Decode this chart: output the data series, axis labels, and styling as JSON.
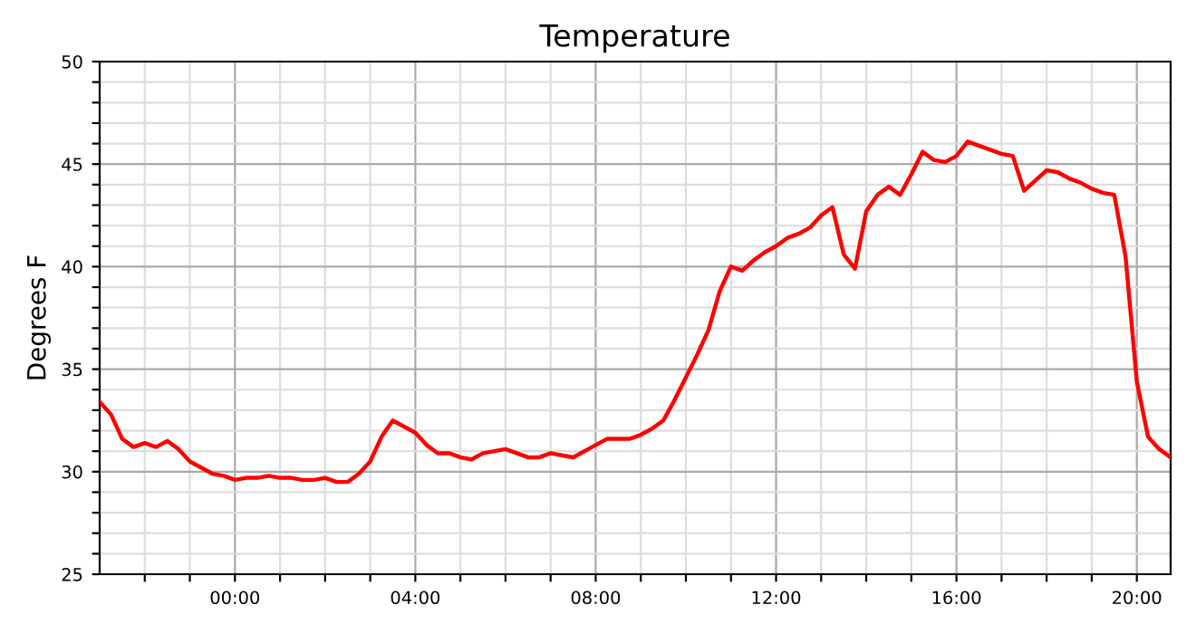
{
  "chart_data": {
    "type": "line",
    "title": "Temperature",
    "ylabel": "Degrees F",
    "x": [
      -3,
      -2.75,
      -2.5,
      -2.25,
      -2,
      -1.75,
      -1.5,
      -1.25,
      -1,
      -0.75,
      -0.5,
      -0.25,
      0,
      0.25,
      0.5,
      0.75,
      1,
      1.25,
      1.5,
      1.75,
      2,
      2.25,
      2.5,
      2.75,
      3,
      3.25,
      3.5,
      4,
      4.25,
      4.5,
      4.75,
      5,
      5.25,
      5.5,
      6,
      6.5,
      6.75,
      7,
      7.5,
      8,
      8.25,
      8.75,
      9,
      9.25,
      9.5,
      9.75,
      10,
      10.25,
      10.5,
      10.75,
      11,
      11.25,
      11.5,
      11.75,
      12,
      12.25,
      12.5,
      12.75,
      13,
      13.25,
      13.5,
      13.75,
      14,
      14.25,
      14.5,
      14.75,
      15,
      15.25,
      15.5,
      15.75,
      16,
      16.25,
      16.5,
      16.75,
      17,
      17.25,
      17.5,
      17.75,
      18,
      18.25,
      18.5,
      18.75,
      19,
      19.25,
      19.5,
      19.75,
      20,
      20.25,
      20.5,
      20.75
    ],
    "series": [
      {
        "color": "#ff0000",
        "values": [
          33.4,
          32.8,
          31.6,
          31.2,
          31.4,
          31.2,
          31.5,
          31.1,
          30.5,
          30.2,
          29.9,
          29.8,
          29.6,
          29.7,
          29.7,
          29.8,
          29.7,
          29.7,
          29.6,
          29.6,
          29.7,
          29.5,
          29.5,
          29.9,
          30.5,
          31.7,
          32.5,
          31.9,
          31.3,
          30.9,
          30.9,
          30.7,
          30.6,
          30.9,
          31.1,
          30.7,
          30.7,
          30.9,
          30.7,
          31.3,
          31.6,
          31.6,
          31.8,
          32.1,
          32.5,
          33.5,
          34.6,
          35.7,
          36.9,
          38.8,
          40.0,
          39.8,
          40.3,
          40.7,
          41.0,
          41.4,
          41.6,
          41.9,
          42.5,
          42.9,
          40.6,
          39.9,
          42.7,
          43.5,
          43.9,
          43.5,
          44.5,
          45.6,
          45.2,
          45.1,
          45.4,
          46.1,
          45.9,
          45.7,
          45.5,
          45.4,
          43.7,
          44.2,
          44.7,
          44.6,
          44.3,
          44.1,
          43.8,
          43.6,
          43.5,
          40.5,
          34.4,
          31.7,
          31.1,
          30.7
        ]
      }
    ],
    "xlim": [
      -3,
      20.75
    ],
    "xticks": [
      {
        "value": -2,
        "label": null
      },
      {
        "value": -1,
        "label": null
      },
      {
        "value": 0,
        "label": "00:00"
      },
      {
        "value": 1,
        "label": null
      },
      {
        "value": 2,
        "label": null
      },
      {
        "value": 3,
        "label": null
      },
      {
        "value": 4,
        "label": "04:00"
      },
      {
        "value": 5,
        "label": null
      },
      {
        "value": 6,
        "label": null
      },
      {
        "value": 7,
        "label": null
      },
      {
        "value": 8,
        "label": "08:00"
      },
      {
        "value": 9,
        "label": null
      },
      {
        "value": 10,
        "label": null
      },
      {
        "value": 11,
        "label": null
      },
      {
        "value": 12,
        "label": "12:00"
      },
      {
        "value": 13,
        "label": null
      },
      {
        "value": 14,
        "label": null
      },
      {
        "value": 15,
        "label": null
      },
      {
        "value": 16,
        "label": "16:00"
      },
      {
        "value": 17,
        "label": null
      },
      {
        "value": 18,
        "label": null
      },
      {
        "value": 19,
        "label": null
      },
      {
        "value": 20,
        "label": "20:00"
      }
    ],
    "ylim": [
      25,
      50
    ],
    "yticks": [
      25,
      {
        "value": 26,
        "label": null
      },
      {
        "value": 27,
        "label": null
      },
      {
        "value": 28,
        "label": null
      },
      {
        "value": 29,
        "label": null
      },
      30,
      {
        "value": 31,
        "label": null
      },
      {
        "value": 32,
        "label": null
      },
      {
        "value": 33,
        "label": null
      },
      {
        "value": 34,
        "label": null
      },
      35,
      {
        "value": 36,
        "label": null
      },
      {
        "value": 37,
        "label": null
      },
      {
        "value": 38,
        "label": null
      },
      {
        "value": 39,
        "label": null
      },
      40,
      {
        "value": 41,
        "label": null
      },
      {
        "value": 42,
        "label": null
      },
      {
        "value": 43,
        "label": null
      },
      {
        "value": 44,
        "label": null
      },
      45,
      {
        "value": 46,
        "label": null
      },
      {
        "value": 47,
        "label": null
      },
      {
        "value": 48,
        "label": null
      },
      {
        "value": 49,
        "label": null
      },
      50
    ],
    "grid": true,
    "line_style": "solid"
  }
}
